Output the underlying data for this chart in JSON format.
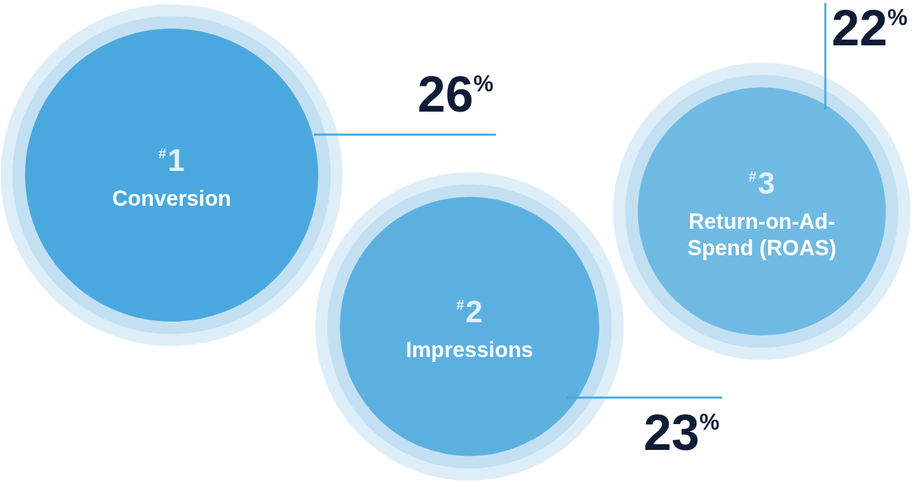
{
  "chart_data": {
    "type": "other",
    "categories": [
      "Conversion",
      "Impressions",
      "Return-on-Ad-Spend (ROAS)"
    ],
    "values": [
      26,
      23,
      22
    ],
    "value_labels": [
      "26$^{%}$",
      "23$^{%}$",
      "22$^{%}$"
    ],
    "colors": [
      "#4aa8de",
      "#5cb0e0",
      "#6fbae3"
    ],
    "annotations": [
      {
        "text": "$^{#}$1",
        "x": "Conversion"
      },
      {
        "text": "$^{#}$2",
        "x": "Impressions"
      },
      {
        "text": "$^{#}$3",
        "x": "Return-on-Ad-Spend (ROAS)"
      }
    ]
  }
}
